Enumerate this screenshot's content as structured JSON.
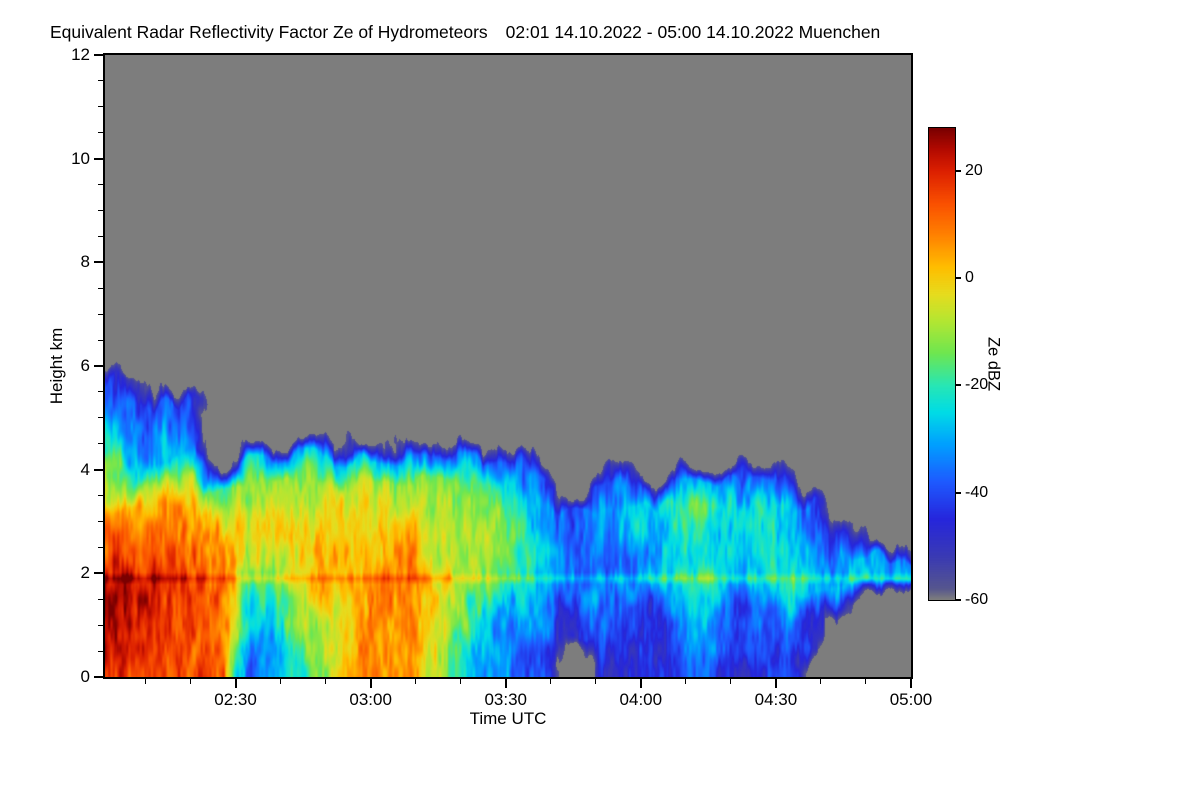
{
  "chart_data": {
    "type": "heatmap",
    "title": "Equivalent Radar Reflectivity Factor Ze of Hydrometeors",
    "subtitle": "02:01 14.10.2022 - 05:00 14.10.2022 Muenchen",
    "xlabel": "Time UTC",
    "ylabel": "Height km",
    "value_label": "Ze dBZ",
    "x_range_hours": [
      2.016667,
      5.0
    ],
    "x_ticks": [
      {
        "hours": 2.5,
        "label": "02:30"
      },
      {
        "hours": 3.0,
        "label": "03:00"
      },
      {
        "hours": 3.5,
        "label": "03:30"
      },
      {
        "hours": 4.0,
        "label": "04:00"
      },
      {
        "hours": 4.5,
        "label": "04:30"
      },
      {
        "hours": 5.0,
        "label": "05:00"
      }
    ],
    "x_minor_tick_minutes": 10,
    "y_range_km": [
      0,
      12
    ],
    "y_ticks_km": [
      0,
      2,
      4,
      6,
      8,
      10,
      12
    ],
    "y_minor_tick_km": 0.5,
    "colorbar": {
      "range_dbz": [
        -60,
        28
      ],
      "ticks_dbz": [
        20,
        0,
        -20,
        -40,
        -60
      ],
      "stops": [
        [
          -60,
          "#7d7d7d"
        ],
        [
          -58,
          "#56568e"
        ],
        [
          -52,
          "#3a3ab4"
        ],
        [
          -45,
          "#2626dc"
        ],
        [
          -38,
          "#1e5aff"
        ],
        [
          -31,
          "#00a0ff"
        ],
        [
          -25,
          "#00dce6"
        ],
        [
          -20,
          "#28e6b4"
        ],
        [
          -14,
          "#6ee650"
        ],
        [
          -8,
          "#b4e632"
        ],
        [
          -3,
          "#e6dc1e"
        ],
        [
          2,
          "#ffbe00"
        ],
        [
          8,
          "#ff8200"
        ],
        [
          14,
          "#fa5000"
        ],
        [
          20,
          "#dc2000"
        ],
        [
          24,
          "#b40a00"
        ],
        [
          28,
          "#7a0000"
        ]
      ]
    },
    "no_echo_color": "#7d7d7d",
    "grid": {
      "t_start_hours": 2.0,
      "t_end_hours": 5.0,
      "n_time_bins": 30,
      "h_start_km": 0.0,
      "h_end_km": 6.0,
      "n_height_bins": 12,
      "order": "rows bottom-to-top (0-0.5 km first), each row has 30 six-minute time bins of mean Ze in dBZ; null = no echo (gray background)",
      "values_dbz": [
        [
          18,
          18,
          16,
          15,
          12,
          -35,
          -30,
          -20,
          -8,
          2,
          6,
          3,
          -6,
          -25,
          -32,
          -36,
          -42,
          null,
          -45,
          -46,
          -46,
          -42,
          -36,
          -44,
          -46,
          -42,
          null,
          null,
          null,
          null
        ],
        [
          18,
          19,
          17,
          15,
          12,
          -30,
          -26,
          -16,
          -6,
          2,
          7,
          4,
          -5,
          -22,
          -28,
          -33,
          -40,
          -46,
          -42,
          -44,
          -44,
          -38,
          -32,
          -42,
          -42,
          -38,
          -46,
          null,
          null,
          null
        ],
        [
          19,
          19,
          17,
          16,
          12,
          -24,
          -20,
          -10,
          -4,
          3,
          8,
          5,
          -3,
          -18,
          -25,
          -30,
          -38,
          -44,
          -40,
          -40,
          -42,
          -34,
          -28,
          -38,
          -36,
          -34,
          -44,
          -46,
          null,
          null
        ],
        [
          21,
          21,
          19,
          17,
          14,
          -14,
          -9,
          -4,
          1,
          6,
          9,
          7,
          1,
          -12,
          -20,
          -24,
          -30,
          -38,
          -34,
          -30,
          -28,
          -25,
          -22,
          -27,
          -25,
          -22,
          -30,
          -26,
          -28,
          -30
        ],
        [
          16,
          16,
          14,
          13,
          10,
          -7,
          -4,
          -2,
          0,
          4,
          5,
          3,
          -2,
          -10,
          -15,
          -20,
          -28,
          -40,
          -36,
          -33,
          -31,
          -27,
          -24,
          -29,
          -27,
          -25,
          -34,
          -30,
          -32,
          -36
        ],
        [
          11,
          10,
          9,
          8,
          6,
          -5,
          -2,
          0,
          -2,
          0,
          2,
          0,
          -5,
          -8,
          -12,
          -18,
          -30,
          -42,
          -34,
          -29,
          -27,
          -24,
          -21,
          -27,
          -24,
          -23,
          -38,
          -44,
          null,
          null
        ],
        [
          5,
          0,
          3,
          2,
          -4,
          -8,
          -5,
          -3,
          -5,
          -3,
          -5,
          -8,
          -10,
          -10,
          -15,
          -22,
          -34,
          -44,
          -31,
          -27,
          -24,
          -21,
          -19,
          -24,
          -21,
          -24,
          -40,
          null,
          null,
          null
        ],
        [
          -6,
          -24,
          -10,
          -14,
          -18,
          -12,
          -10,
          -8,
          -10,
          -8,
          -10,
          -12,
          -15,
          -15,
          -20,
          -30,
          -42,
          null,
          -40,
          -34,
          null,
          -34,
          -30,
          -35,
          -38,
          -40,
          null,
          null,
          null,
          null
        ],
        [
          -20,
          -34,
          -30,
          -32,
          null,
          -26,
          -30,
          -28,
          -30,
          -28,
          -30,
          -32,
          -35,
          -35,
          -38,
          -46,
          null,
          null,
          null,
          null,
          null,
          null,
          null,
          null,
          null,
          null,
          null,
          null,
          null,
          null
        ],
        [
          -28,
          -38,
          -32,
          -40,
          null,
          null,
          null,
          null,
          null,
          null,
          null,
          null,
          null,
          null,
          null,
          null,
          null,
          null,
          null,
          null,
          null,
          null,
          null,
          null,
          null,
          null,
          null,
          null,
          null,
          null
        ],
        [
          -33,
          -40,
          -36,
          -44,
          null,
          null,
          null,
          null,
          null,
          null,
          null,
          null,
          null,
          null,
          null,
          null,
          null,
          null,
          null,
          null,
          null,
          null,
          null,
          null,
          null,
          null,
          null,
          null,
          null,
          null
        ],
        [
          -44,
          -50,
          null,
          null,
          null,
          null,
          null,
          null,
          null,
          null,
          null,
          null,
          null,
          null,
          null,
          null,
          null,
          null,
          null,
          null,
          null,
          null,
          null,
          null,
          null,
          null,
          null,
          null,
          null,
          null
        ]
      ]
    }
  }
}
